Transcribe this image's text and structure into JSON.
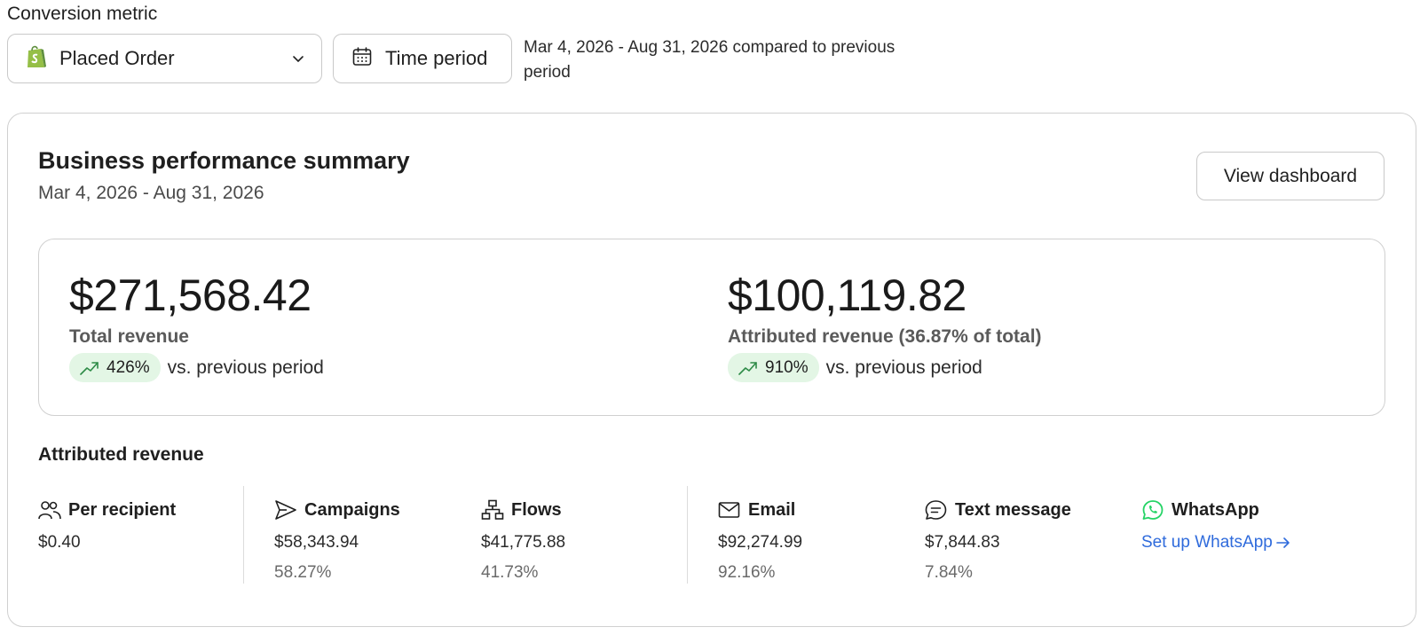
{
  "conversion": {
    "label": "Conversion metric",
    "selected_metric": "Placed Order",
    "time_period_label": "Time period",
    "period_description": "Mar 4, 2026 - Aug 31, 2026 compared to previous period"
  },
  "summary": {
    "title": "Business performance summary",
    "date_range": "Mar 4, 2026 - Aug 31, 2026",
    "view_dashboard_label": "View dashboard",
    "total": {
      "value": "$271,568.42",
      "label": "Total revenue",
      "change": "426%",
      "change_text": "vs. previous period"
    },
    "attributed": {
      "value": "$100,119.82",
      "label": "Attributed revenue (36.87% of total)",
      "change": "910%",
      "change_text": "vs. previous period"
    }
  },
  "attributed_revenue": {
    "title": "Attributed revenue",
    "per_recipient": {
      "label": "Per recipient",
      "value": "$0.40"
    },
    "campaigns": {
      "label": "Campaigns",
      "value": "$58,343.94",
      "percent": "58.27%"
    },
    "flows": {
      "label": "Flows",
      "value": "$41,775.88",
      "percent": "41.73%"
    },
    "email": {
      "label": "Email",
      "value": "$92,274.99",
      "percent": "92.16%"
    },
    "text_message": {
      "label": "Text message",
      "value": "$7,844.83",
      "percent": "7.84%"
    },
    "whatsapp": {
      "label": "WhatsApp",
      "link": "Set up WhatsApp"
    }
  },
  "colors": {
    "positive_pill_bg": "#e3f6e5",
    "positive_icon": "#2e8b47",
    "link": "#2f6bdc",
    "shopify_green": "#95bf47",
    "whatsapp_green": "#25d366"
  }
}
